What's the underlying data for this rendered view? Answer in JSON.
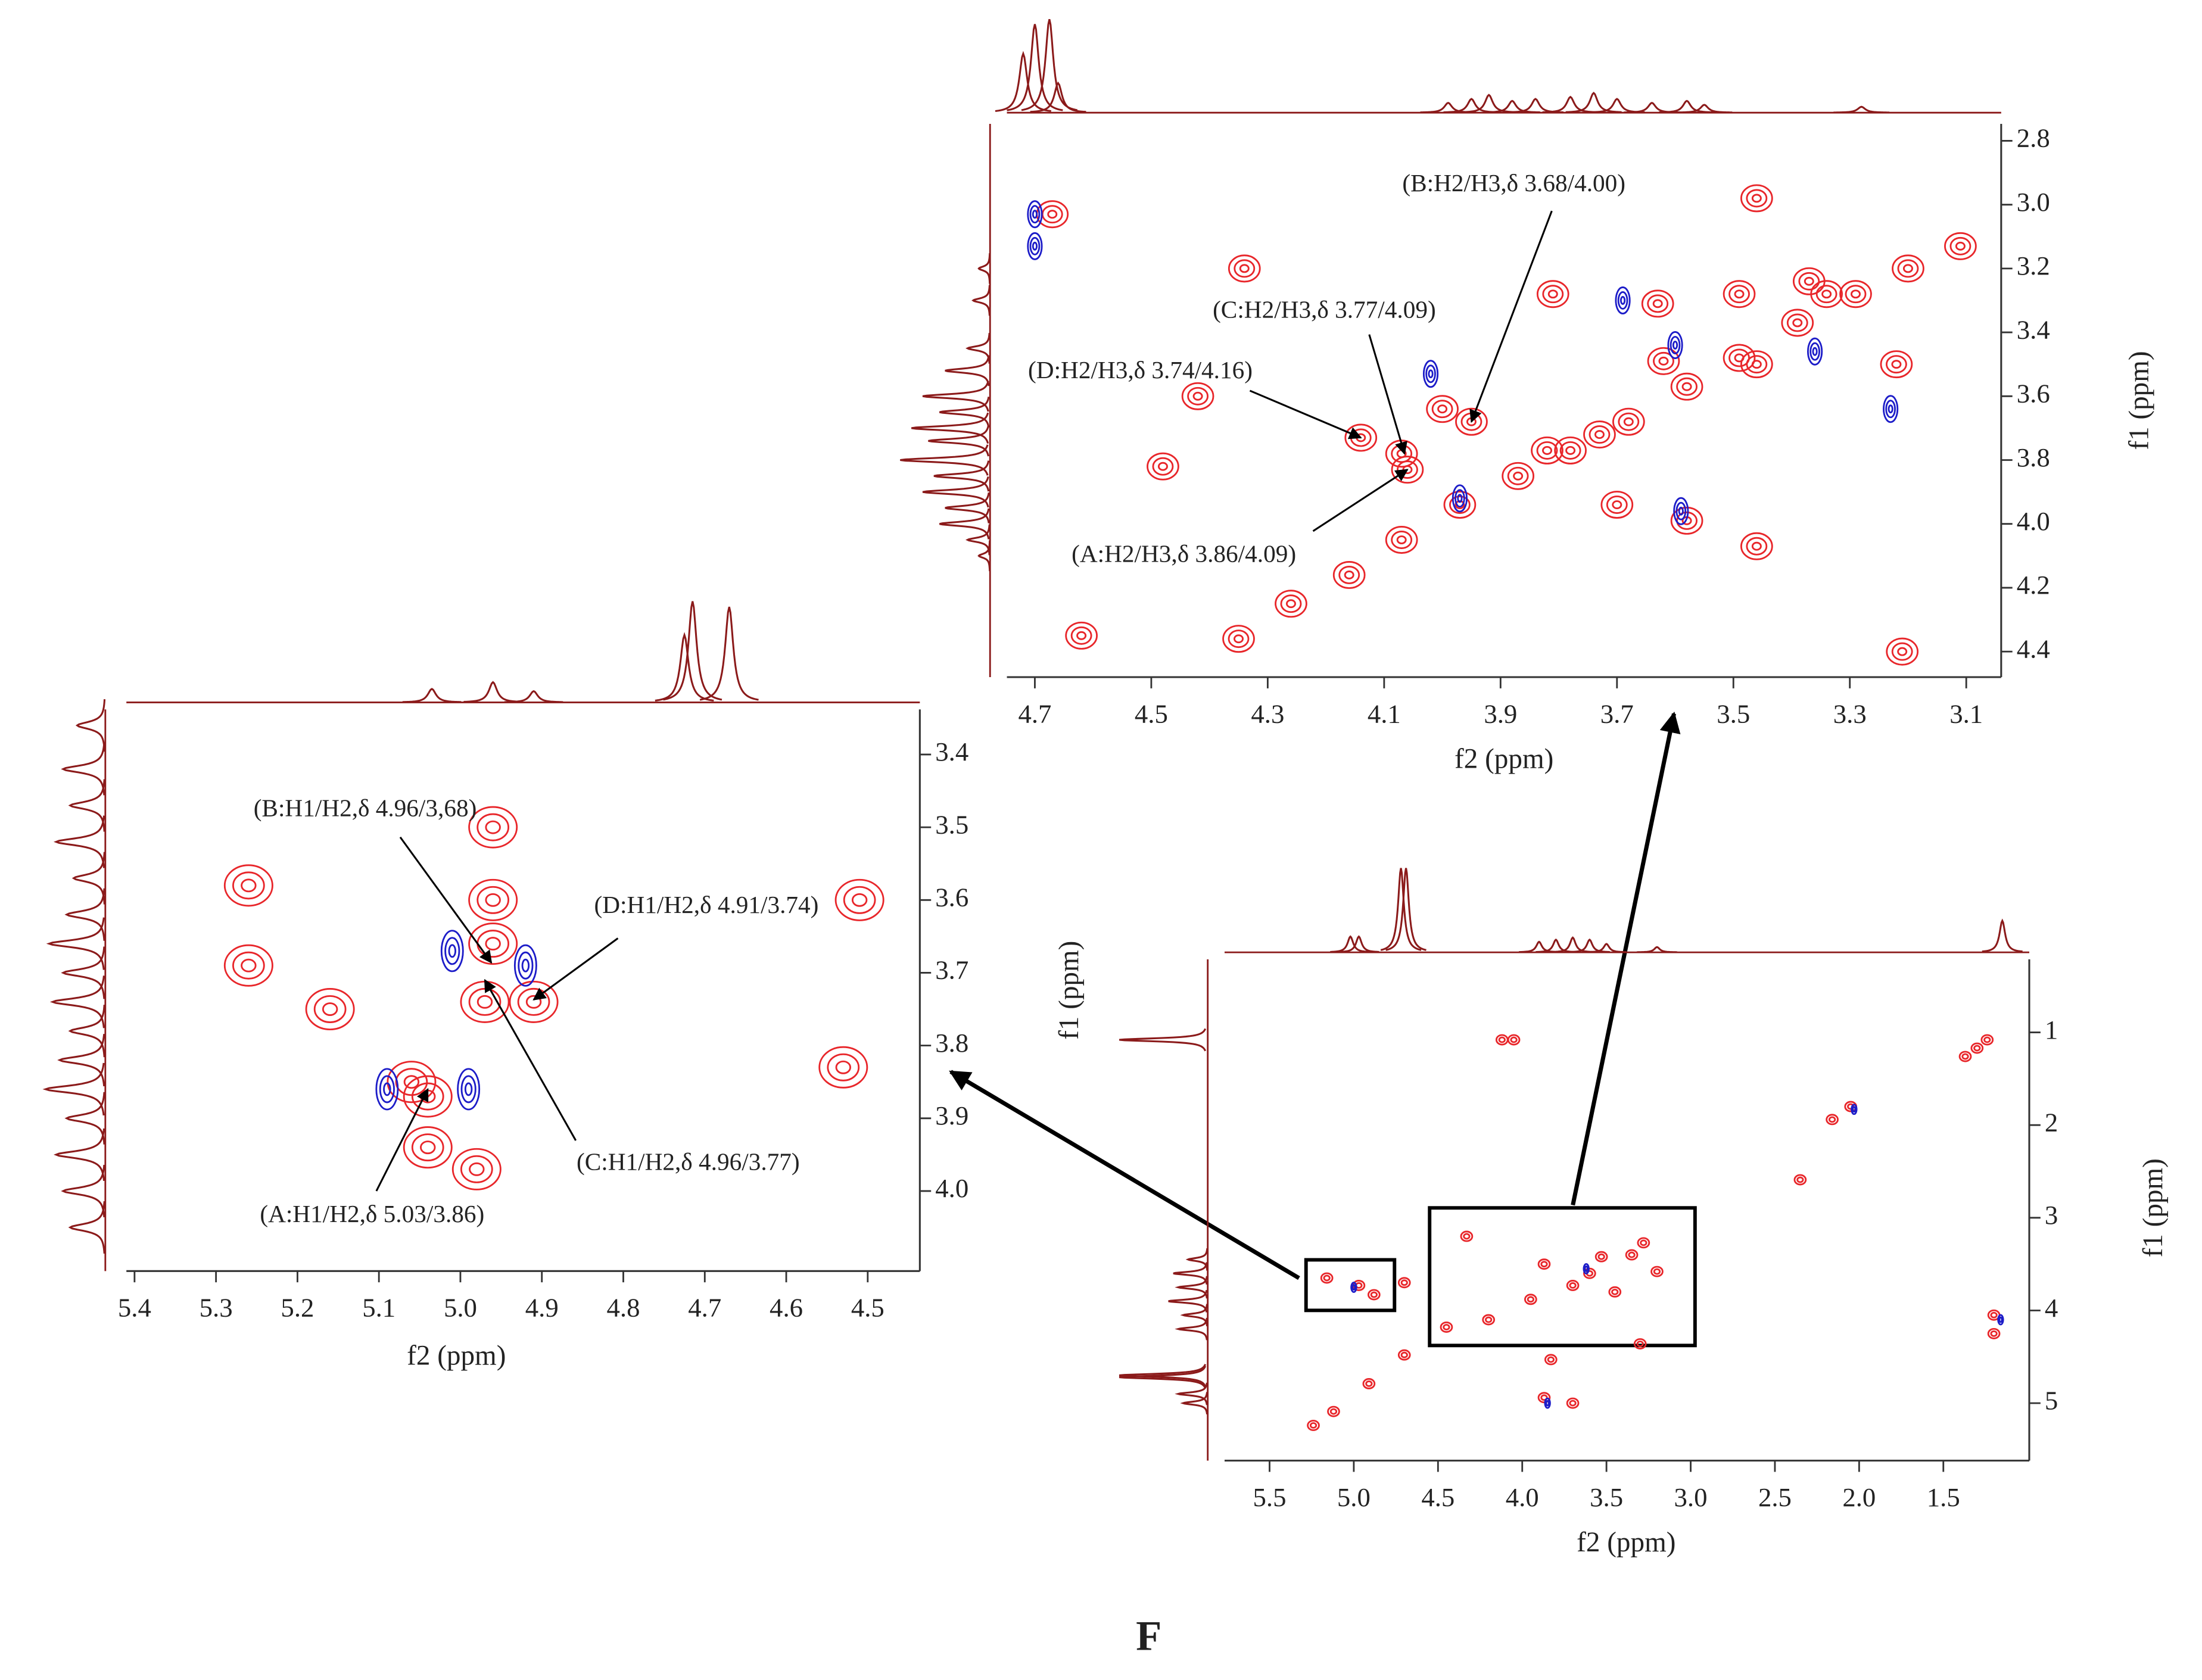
{
  "chart_data": [
    {
      "type": "contour",
      "xlabel": "f2 (ppm)",
      "ylabel": "f1 (ppm)",
      "xlim": [
        4.748,
        3.04
      ],
      "ylim": [
        2.747,
        4.48
      ],
      "xticks": [
        4.7,
        4.5,
        4.3,
        4.1,
        3.9,
        3.7,
        3.5,
        3.3,
        3.1
      ],
      "yticks": [
        2.8,
        {
          "value": 3,
          "label": "3.0"
        },
        3.2,
        3.4,
        3.6,
        3.8,
        {
          "value": 4,
          "label": "4.0"
        },
        4.2,
        4.4
      ],
      "colors": {
        "positive": "#e8262a",
        "negative": "#1c1cc8",
        "projection": "#8b1a1a"
      },
      "peaks": {
        "x": [
          4.67,
          4.34,
          4.48,
          4.42,
          4.62,
          4.14,
          4.07,
          3.95,
          4.06,
          3.81,
          3.63,
          3.49,
          3.37,
          3.34,
          3.46,
          3.21,
          3.62,
          3.46,
          3.22,
          3.7,
          3.58,
          3.46,
          3.82,
          3.73,
          4.35,
          4.26,
          4.16,
          4.07,
          3.97,
          3.87,
          3.78,
          3.68,
          3.58,
          3.49,
          3.39,
          3.29,
          3.2,
          3.11,
          4.0
        ],
        "y": [
          3.03,
          3.2,
          3.82,
          3.6,
          4.35,
          3.73,
          3.78,
          3.68,
          3.83,
          3.28,
          3.31,
          3.28,
          3.24,
          3.28,
          2.98,
          4.4,
          3.49,
          3.5,
          3.5,
          3.94,
          3.99,
          4.07,
          3.77,
          3.72,
          4.36,
          4.25,
          4.16,
          4.05,
          3.94,
          3.85,
          3.77,
          3.68,
          3.57,
          3.48,
          3.37,
          3.28,
          3.2,
          3.13,
          3.64
        ]
      },
      "negative_peaks": {
        "x": [
          4.7,
          4.7,
          3.69,
          4.02,
          3.36,
          3.23,
          3.59,
          3.97,
          3.6
        ],
        "y": [
          3.03,
          3.13,
          3.3,
          3.53,
          3.46,
          3.64,
          3.96,
          3.92,
          3.44
        ]
      },
      "projection_x": {
        "shift": [
          4.72,
          4.7,
          4.675,
          4.66,
          3.99,
          3.95,
          3.92,
          3.88,
          3.84,
          3.78,
          3.74,
          3.7,
          3.64,
          3.58,
          3.55,
          3.28
        ],
        "height": [
          60,
          90,
          95,
          30,
          10,
          14,
          18,
          12,
          14,
          16,
          20,
          14,
          10,
          12,
          8,
          6
        ]
      },
      "projection_y": {
        "shift": [
          3.2,
          3.3,
          3.45,
          3.52,
          3.6,
          3.65,
          3.7,
          3.74,
          3.8,
          3.85,
          3.9,
          3.95,
          4.0,
          4.05,
          4.1
        ],
        "height": [
          10,
          15,
          20,
          40,
          60,
          45,
          70,
          55,
          80,
          50,
          60,
          40,
          45,
          20,
          10
        ]
      },
      "annotations": [
        {
          "text": "(B:H2/H3,δ 3.68/4.00)",
          "x": 3.95,
          "y": 3.68
        },
        {
          "text": "(C:H2/H3,δ 3.77/4.09)",
          "x": 4.065,
          "y": 3.78
        },
        {
          "text": "(D:H2/H3,δ 3.74/4.16)",
          "x": 4.14,
          "y": 3.73
        },
        {
          "text": "(A:H2/H3,δ 3.86/4.09)",
          "x": 4.06,
          "y": 3.83
        }
      ]
    },
    {
      "type": "contour",
      "xlabel": "f2 (ppm)",
      "ylabel": "f1 (ppm)",
      "xlim": [
        5.41,
        4.436
      ],
      "ylim": [
        3.338,
        4.11
      ],
      "xticks": [
        5.4,
        5.3,
        5.2,
        5.1,
        {
          "value": 5,
          "label": "5.0"
        },
        4.9,
        4.8,
        4.7,
        4.6,
        4.5
      ],
      "yticks": [
        3.4,
        3.5,
        3.6,
        3.7,
        3.8,
        3.9,
        {
          "value": 4,
          "label": "4.0"
        }
      ],
      "colors": {
        "positive": "#e8262a",
        "negative": "#1c1cc8",
        "projection": "#8b1a1a"
      },
      "peaks": {
        "x": [
          5.26,
          5.26,
          5.16,
          4.96,
          4.96,
          4.91,
          4.97,
          5.06,
          5.04,
          4.53,
          4.51,
          4.98,
          5.04,
          4.96
        ],
        "y": [
          3.58,
          3.69,
          3.75,
          3.66,
          3.6,
          3.74,
          3.74,
          3.85,
          3.87,
          3.83,
          3.6,
          3.97,
          3.94,
          3.5
        ]
      },
      "negative_peaks": {
        "x": [
          5.01,
          4.92,
          5.09,
          4.99
        ],
        "y": [
          3.67,
          3.69,
          3.86,
          3.86
        ]
      },
      "projection_x": {
        "shift": [
          5.035,
          4.96,
          4.91,
          4.725,
          4.715,
          4.67
        ],
        "height": [
          12,
          18,
          10,
          60,
          90,
          85
        ]
      },
      "projection_y": {
        "shift": [
          3.36,
          3.42,
          3.47,
          3.52,
          3.57,
          3.62,
          3.66,
          3.7,
          3.74,
          3.78,
          3.82,
          3.86,
          3.9,
          3.95,
          4.0,
          4.05
        ],
        "height": [
          40,
          60,
          50,
          70,
          45,
          55,
          80,
          60,
          75,
          50,
          65,
          85,
          55,
          70,
          60,
          50
        ]
      },
      "annotations": [
        {
          "text": "(B:H1/H2,δ 4.96/3,68)",
          "x": 4.962,
          "y": 3.686
        },
        {
          "text": "(D:H1/H2,δ 4.91/3.74)",
          "x": 4.91,
          "y": 3.737
        },
        {
          "text": "(C:H1/H2,δ 4.96/3.77)",
          "x": 4.97,
          "y": 3.71
        },
        {
          "text": "(A:H1/H2,δ 5.03/3.86)",
          "x": 5.04,
          "y": 3.86
        }
      ]
    },
    {
      "type": "contour",
      "xlabel": "f2 (ppm)",
      "ylabel": "f1 (ppm)",
      "xlim": [
        5.767,
        0.99
      ],
      "ylim": [
        0.212,
        5.62
      ],
      "xticks": [
        5.5,
        {
          "value": 5,
          "label": "5.0"
        },
        4.5,
        {
          "value": 4,
          "label": "4.0"
        },
        3.5,
        {
          "value": 3,
          "label": "3.0"
        },
        2.5,
        {
          "value": 2,
          "label": "2.0"
        },
        1.5
      ],
      "yticks": [
        1,
        2,
        3,
        4,
        5
      ],
      "colors": {
        "positive": "#e8262a",
        "negative": "#1c1cc8",
        "projection": "#8b1a1a"
      },
      "peaks": {
        "x": [
          4.12,
          4.05,
          1.24,
          1.37,
          1.3,
          2.05,
          2.16,
          2.35,
          4.33,
          4.7,
          5.16,
          4.97,
          4.88,
          3.87,
          3.53,
          3.28,
          3.7,
          3.95,
          4.2,
          3.2,
          3.45,
          3.6,
          3.35,
          4.45,
          4.7,
          4.91,
          5.12,
          5.24,
          3.83,
          3.7,
          3.87,
          1.2,
          1.2,
          3.3
        ],
        "y": [
          1.08,
          1.08,
          1.08,
          1.26,
          1.17,
          1.8,
          1.94,
          2.59,
          3.2,
          3.7,
          3.65,
          3.73,
          3.83,
          3.5,
          3.42,
          3.27,
          3.73,
          3.88,
          4.1,
          3.58,
          3.8,
          3.6,
          3.4,
          4.18,
          4.48,
          4.79,
          5.09,
          5.24,
          4.53,
          5.0,
          4.94,
          4.05,
          4.25,
          4.36
        ]
      },
      "negative_peaks": {
        "x": [
          3.85,
          1.16,
          2.03,
          3.62,
          5.0
        ],
        "y": [
          5.0,
          4.1,
          1.83,
          3.55,
          3.75
        ]
      },
      "projection_x": {
        "shift": [
          5.02,
          4.97,
          4.72,
          4.69,
          3.9,
          3.8,
          3.7,
          3.6,
          3.5,
          3.2,
          1.15
        ],
        "height": [
          15,
          15,
          80,
          80,
          10,
          12,
          14,
          12,
          8,
          5,
          30
        ]
      },
      "projection_y": {
        "shift": [
          1.08,
          3.45,
          3.6,
          3.75,
          3.9,
          4.05,
          4.2,
          4.7,
          4.72,
          4.9,
          5.0
        ],
        "height": [
          90,
          20,
          35,
          30,
          40,
          25,
          30,
          90,
          90,
          30,
          25
        ]
      },
      "annotations": []
    }
  ],
  "figure_label": "F"
}
